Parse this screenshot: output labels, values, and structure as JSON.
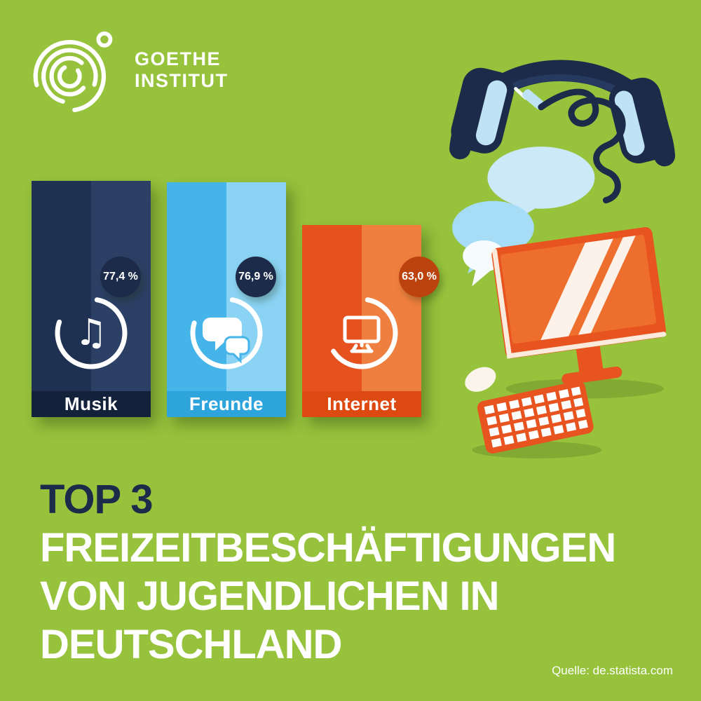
{
  "meta": {
    "bg_color": "#96C23C",
    "navy": "#1B2B49",
    "orange": "#E5521D",
    "light_blue": "#45B4E8",
    "white": "#FFFFFF"
  },
  "logo": {
    "line1": "GOETHE",
    "line2": "INSTITUT",
    "mark_icon": "goethe-spiral-icon"
  },
  "chart_data": {
    "type": "bar",
    "categories": [
      "Musik",
      "Freunde",
      "Internet"
    ],
    "values": [
      77.4,
      76.9,
      63.0
    ],
    "value_labels": [
      "77,4 %",
      "76,9 %",
      "63,0 %"
    ],
    "unit": "%",
    "ylim": [
      0,
      100
    ],
    "title": "TOP 3 FREIZEITBESCHÄFTIGUNGEN VON JUGENDLICHEN IN DEUTSCHLAND",
    "source": "Quelle: de.statista.com",
    "legend": "none",
    "grid": "off"
  },
  "bars": [
    {
      "label": "Musik",
      "value": 77.4,
      "value_label": "77,4 %",
      "icon": "music-note-icon",
      "icon_glyph": "♫",
      "color_left": "#1F3152",
      "color_right": "#2C4066",
      "label_bg": "#14213B",
      "badge_bg": "#1B2B49"
    },
    {
      "label": "Freunde",
      "value": 76.9,
      "value_label": "76,9 %",
      "icon": "speech-bubbles-icon",
      "color_left": "#45B4E8",
      "color_right": "#8BD3F4",
      "label_bg": "#2EA4DC",
      "badge_bg": "#1B2B49"
    },
    {
      "label": "Internet",
      "value": 63.0,
      "value_label": "63,0 %",
      "icon": "monitor-icon",
      "color_left": "#E5521D",
      "color_right": "#EF7F3E",
      "label_bg": "#DC4911",
      "badge_bg": "#BC430E"
    }
  ],
  "headline": {
    "prefix": "TOP 3",
    "lines": [
      "FREIZEITBESCHÄFTIGUNGEN",
      "VON JUGENDLICHEN IN",
      "DEUTSCHLAND"
    ]
  },
  "source": {
    "label": "Quelle: de.statista.com"
  },
  "illustrations": [
    "headphones-illustration",
    "speech-bubbles-illustration",
    "monitor-illustration",
    "mouse-illustration",
    "keyboard-illustration"
  ]
}
